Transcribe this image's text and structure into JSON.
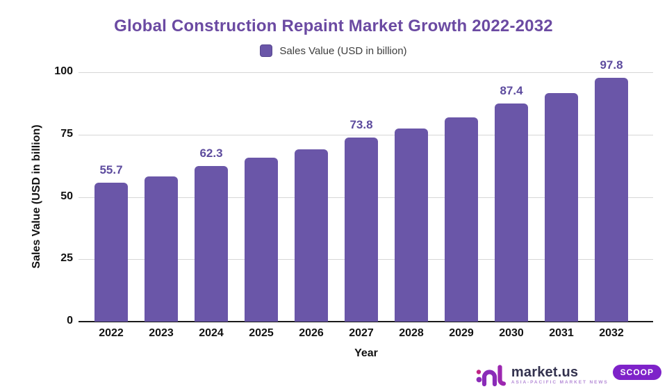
{
  "title": "Global Construction Repaint Market Growth 2022-2032",
  "legend": {
    "label": "Sales Value (USD in billion)",
    "swatch_color": "#6a56a8"
  },
  "chart_data": {
    "type": "bar",
    "title": "Global Construction Repaint Market Growth 2022-2032",
    "categories": [
      "2022",
      "2023",
      "2024",
      "2025",
      "2026",
      "2027",
      "2028",
      "2029",
      "2030",
      "2031",
      "2032"
    ],
    "values": [
      55.7,
      58.3,
      62.3,
      65.7,
      69.2,
      73.8,
      77.4,
      82.0,
      87.4,
      91.6,
      97.8
    ],
    "value_labels": [
      "55.7",
      null,
      "62.3",
      null,
      null,
      "73.8",
      null,
      null,
      "87.4",
      null,
      "97.8"
    ],
    "xlabel": "Year",
    "ylabel": "Sales Value (USD in billion)",
    "yticks": [
      0,
      25,
      50,
      75,
      100
    ],
    "ylim": [
      0,
      100
    ],
    "grid": true,
    "legend_position": "top",
    "bar_color": "#6a56a8",
    "value_label_color": "#5d4b9e",
    "gridline_color": "#d6d6d6"
  },
  "logo": {
    "brand": "market.us",
    "tagline": "ASIA-PACIFIC MARKET NEWS",
    "badge": "SCOOP"
  }
}
